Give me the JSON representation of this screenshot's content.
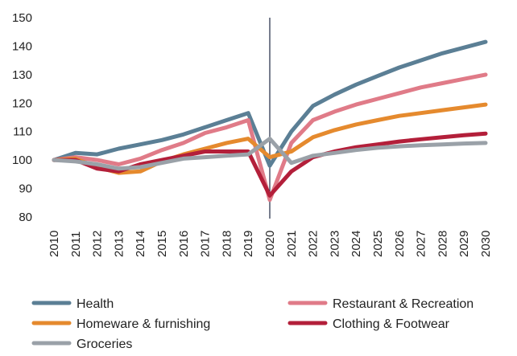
{
  "chart_data": {
    "type": "line",
    "x": [
      "2010",
      "2011",
      "2012",
      "2013",
      "2014",
      "2015",
      "2016",
      "2017",
      "2018",
      "2019",
      "2020",
      "2021",
      "2022",
      "2023",
      "2024",
      "2025",
      "2026",
      "2027",
      "2028",
      "2029",
      "2030"
    ],
    "y_ticks": [
      80,
      90,
      100,
      110,
      120,
      130,
      140,
      150
    ],
    "ylim": [
      80,
      150
    ],
    "grid": false,
    "vertical_marker_x": "2020",
    "legend_position": "bottom",
    "series": [
      {
        "name": "Health",
        "color": "#5b7f95",
        "values": [
          100,
          102.5,
          102,
          104,
          105.5,
          107,
          109,
          111.5,
          114,
          116.5,
          98,
          110,
          119,
          123,
          126.5,
          129.5,
          132.5,
          135,
          137.5,
          139.5,
          141.5
        ]
      },
      {
        "name": "Restaurant & Recreation",
        "color": "#e07b88",
        "values": [
          100,
          101,
          100,
          98.5,
          100.5,
          103.5,
          106,
          109.5,
          111.5,
          114,
          86,
          106,
          114,
          117,
          119.5,
          121.5,
          123.5,
          125.5,
          127,
          128.5,
          130
        ]
      },
      {
        "name": "Homeware & furnishing",
        "color": "#e58a2e",
        "values": [
          100,
          100.5,
          97.5,
          95.5,
          96,
          99.5,
          102,
          104,
          106,
          107.5,
          101,
          103,
          108,
          110.5,
          112.5,
          114,
          115.5,
          116.5,
          117.5,
          118.5,
          119.5
        ]
      },
      {
        "name": "Clothing & Footwear",
        "color": "#b31f3a",
        "values": [
          100,
          100,
          97,
          96,
          98.5,
          100,
          101.5,
          103,
          103,
          103,
          87.5,
          96,
          101,
          103,
          104.5,
          105.5,
          106.5,
          107.3,
          108,
          108.7,
          109.3
        ]
      },
      {
        "name": "Groceries",
        "color": "#9aa1a8",
        "values": [
          100,
          99.5,
          98.5,
          97,
          97.5,
          99,
          100.5,
          101,
          101.5,
          102,
          107.5,
          99,
          101.5,
          102.5,
          103.5,
          104.3,
          104.8,
          105.2,
          105.5,
          105.8,
          106
        ]
      }
    ]
  }
}
